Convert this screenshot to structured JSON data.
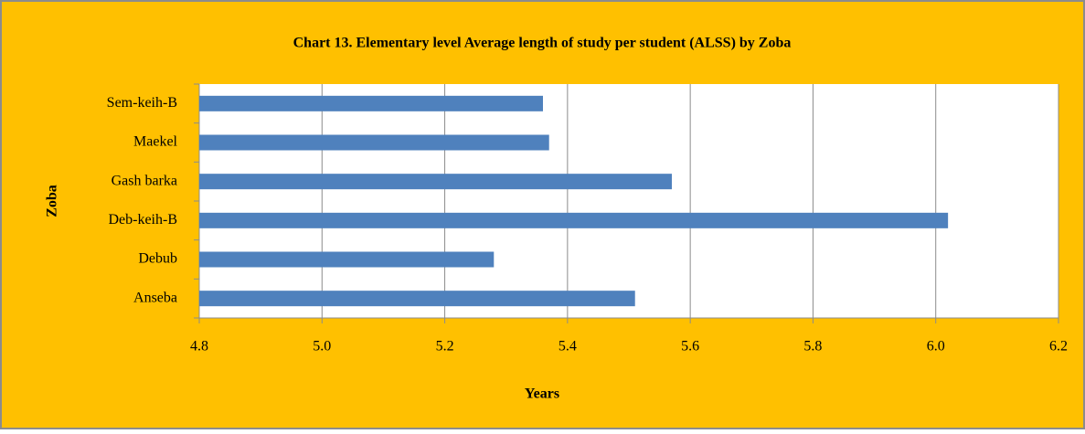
{
  "chart_data": {
    "type": "bar",
    "orientation": "horizontal",
    "title": "Chart 13. Elementary level Average length of study per student (ALSS) by Zoba",
    "x_label": "Years",
    "y_label": "Zoba",
    "categories": [
      "Sem-keih-B",
      "Maekel",
      "Gash barka",
      "Deb-keih-B",
      "Debub",
      "Anseba"
    ],
    "values": [
      5.36,
      5.37,
      5.57,
      6.02,
      5.28,
      5.51
    ],
    "color": "#4f81bd",
    "xlim": [
      4.8,
      6.2
    ],
    "xticks": [
      {
        "value": 4.8,
        "label": "4.8"
      },
      {
        "value": 5.0,
        "label": "5.0"
      },
      {
        "value": 5.2,
        "label": "5.2"
      },
      {
        "value": 5.4,
        "label": "5.4"
      },
      {
        "value": 5.6,
        "label": "5.6"
      },
      {
        "value": 5.8,
        "label": "5.8"
      },
      {
        "value": 6.0,
        "label": "6.0"
      },
      {
        "value": 6.2,
        "label": "6.2"
      }
    ],
    "grid": true
  }
}
